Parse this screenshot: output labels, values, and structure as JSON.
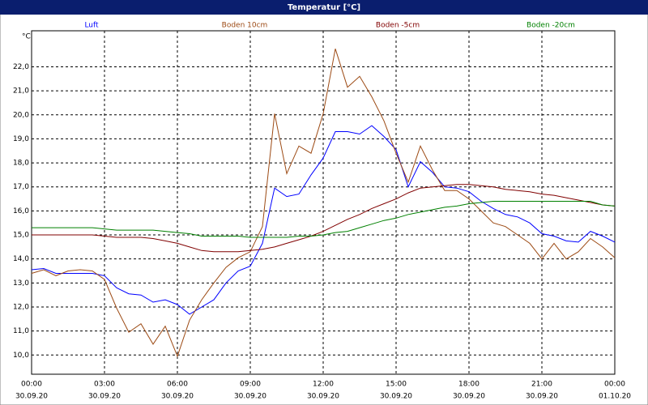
{
  "chart_data": {
    "type": "line",
    "title": "Temperatur [°C]",
    "y_label": "°C",
    "x": [
      0,
      0.5,
      1,
      1.5,
      2,
      2.5,
      3,
      3.5,
      4,
      4.5,
      5,
      5.5,
      6,
      6.5,
      7,
      7.5,
      8,
      8.5,
      9,
      9.5,
      10,
      10.5,
      11,
      11.5,
      12,
      12.5,
      13,
      13.5,
      14,
      14.5,
      15,
      15.5,
      16,
      16.5,
      17,
      17.5,
      18,
      18.5,
      19,
      19.5,
      20,
      20.5,
      21,
      21.5,
      22,
      22.5,
      23,
      23.5,
      24
    ],
    "series": [
      {
        "name": "Luft",
        "color": "#0000ff",
        "values": [
          13.55,
          13.6,
          13.4,
          13.4,
          13.4,
          13.4,
          13.3,
          12.8,
          12.55,
          12.5,
          12.2,
          12.3,
          12.1,
          11.7,
          12.0,
          12.3,
          13.0,
          13.5,
          13.7,
          14.65,
          16.95,
          16.6,
          16.7,
          17.5,
          18.2,
          19.3,
          19.3,
          19.2,
          19.55,
          19.1,
          18.55,
          17.0,
          18.05,
          17.6,
          17.0,
          16.95,
          16.8,
          16.4,
          16.1,
          15.85,
          15.75,
          15.5,
          15.05,
          14.95,
          14.75,
          14.7,
          15.15,
          14.95,
          14.7
        ]
      },
      {
        "name": "Boden 10cm",
        "color": "#9c4a14",
        "values": [
          13.4,
          13.55,
          13.3,
          13.5,
          13.55,
          13.5,
          13.15,
          11.95,
          10.95,
          11.3,
          10.45,
          11.2,
          9.95,
          11.45,
          12.3,
          13.0,
          13.65,
          14.05,
          14.3,
          15.35,
          20.05,
          17.55,
          18.7,
          18.4,
          20.05,
          22.75,
          21.15,
          21.6,
          20.75,
          19.75,
          18.4,
          17.2,
          18.7,
          17.7,
          16.85,
          16.85,
          16.5,
          16.0,
          15.5,
          15.35,
          15.0,
          14.65,
          14.0,
          14.65,
          14.0,
          14.3,
          14.85,
          14.5,
          14.05
        ]
      },
      {
        "name": "Boden -5cm",
        "color": "#800000",
        "values": [
          15.0,
          15.0,
          15.0,
          15.0,
          15.0,
          15.0,
          14.95,
          14.9,
          14.9,
          14.9,
          14.85,
          14.75,
          14.65,
          14.5,
          14.35,
          14.3,
          14.3,
          14.3,
          14.35,
          14.4,
          14.5,
          14.65,
          14.8,
          14.95,
          15.15,
          15.4,
          15.65,
          15.85,
          16.1,
          16.3,
          16.5,
          16.75,
          16.95,
          17.0,
          17.05,
          17.1,
          17.1,
          17.05,
          17.0,
          16.9,
          16.85,
          16.8,
          16.7,
          16.65,
          16.55,
          16.45,
          16.35,
          16.25,
          16.2
        ]
      },
      {
        "name": "Boden -20cm",
        "color": "#008000",
        "values": [
          15.3,
          15.3,
          15.3,
          15.3,
          15.3,
          15.3,
          15.25,
          15.2,
          15.2,
          15.2,
          15.2,
          15.15,
          15.1,
          15.05,
          14.95,
          14.95,
          14.95,
          14.95,
          14.9,
          14.9,
          14.9,
          14.9,
          14.95,
          14.95,
          15.0,
          15.1,
          15.15,
          15.3,
          15.45,
          15.6,
          15.7,
          15.85,
          15.95,
          16.05,
          16.15,
          16.2,
          16.3,
          16.35,
          16.4,
          16.4,
          16.4,
          16.4,
          16.4,
          16.4,
          16.4,
          16.4,
          16.4,
          16.25,
          16.2
        ]
      }
    ],
    "xlim": [
      0,
      24
    ],
    "xticks": [
      {
        "value": 0,
        "label": "00:00"
      },
      {
        "value": 3,
        "label": "03:00"
      },
      {
        "value": 6,
        "label": "06:00"
      },
      {
        "value": 9,
        "label": "09:00"
      },
      {
        "value": 12,
        "label": "12:00"
      },
      {
        "value": 15,
        "label": "15:00"
      },
      {
        "value": 18,
        "label": "18:00"
      },
      {
        "value": 21,
        "label": "21:00"
      },
      {
        "value": 24,
        "label": "00:00"
      }
    ],
    "xtick_dates": [
      "30.09.20",
      "30.09.20",
      "30.09.20",
      "30.09.20",
      "30.09.20",
      "30.09.20",
      "30.09.20",
      "30.09.20",
      "01.10.20"
    ],
    "ylim": [
      9.2,
      23.5
    ],
    "yticks": [
      {
        "value": 10,
        "label": "10,0"
      },
      {
        "value": 11,
        "label": "11,0"
      },
      {
        "value": 12,
        "label": "12,0"
      },
      {
        "value": 13,
        "label": "13,0"
      },
      {
        "value": 14,
        "label": "14,0"
      },
      {
        "value": 15,
        "label": "15,0"
      },
      {
        "value": 16,
        "label": "16,0"
      },
      {
        "value": 17,
        "label": "17,0"
      },
      {
        "value": 18,
        "label": "18,0"
      },
      {
        "value": 19,
        "label": "19,0"
      },
      {
        "value": 20,
        "label": "20,0"
      },
      {
        "value": 21,
        "label": "21,0"
      },
      {
        "value": 22,
        "label": "22,0"
      }
    ],
    "grid": true
  }
}
